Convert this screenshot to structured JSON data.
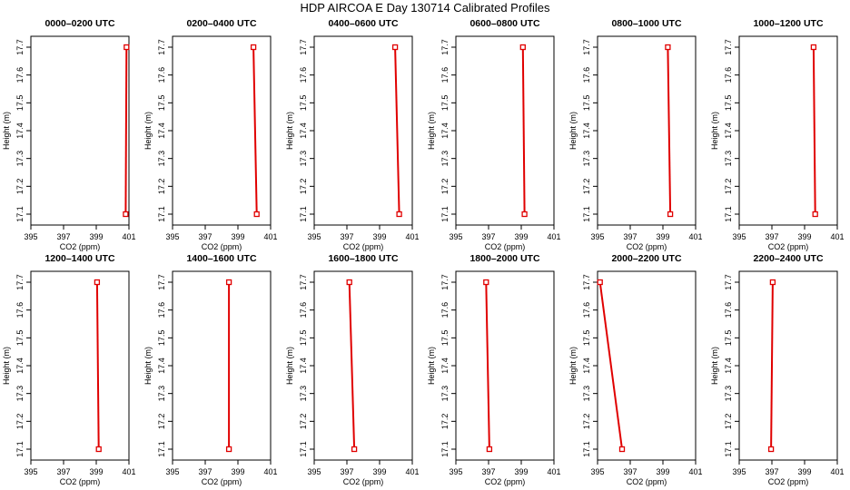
{
  "title": "HDP AIRCOA E  Day 130714  Calibrated Profiles",
  "colors": {
    "profile": "#e00000",
    "axis": "#000000"
  },
  "chart_data": {
    "type": "line",
    "xlabel": "CO2 (ppm)",
    "ylabel": "Height (m)",
    "xlim": [
      395,
      401
    ],
    "ylim": [
      17.1,
      17.7
    ],
    "xticks": [
      "395",
      "397",
      "399",
      "401"
    ],
    "yticks": [
      "17.1",
      "17.2",
      "17.3",
      "17.4",
      "17.5",
      "17.6",
      "17.7"
    ],
    "heights": [
      17.7,
      17.1
    ],
    "panels": [
      {
        "title": "0000–0200 UTC",
        "co2": [
          400.85,
          400.8
        ]
      },
      {
        "title": "0200–0400 UTC",
        "co2": [
          399.95,
          400.15
        ]
      },
      {
        "title": "0400–0600 UTC",
        "co2": [
          399.95,
          400.2
        ]
      },
      {
        "title": "0600–0800 UTC",
        "co2": [
          399.1,
          399.2
        ]
      },
      {
        "title": "0800–1000 UTC",
        "co2": [
          399.3,
          399.45
        ]
      },
      {
        "title": "1000–1200 UTC",
        "co2": [
          399.55,
          399.65
        ]
      },
      {
        "title": "1200–1400 UTC",
        "co2": [
          399.05,
          399.15
        ]
      },
      {
        "title": "1400–1600 UTC",
        "co2": [
          398.45,
          398.45
        ]
      },
      {
        "title": "1600–1800 UTC",
        "co2": [
          397.15,
          397.45
        ]
      },
      {
        "title": "1800–2000 UTC",
        "co2": [
          396.85,
          397.05
        ]
      },
      {
        "title": "2000–2200 UTC",
        "co2": [
          395.15,
          396.5
        ]
      },
      {
        "title": "2200–2400 UTC",
        "co2": [
          397.05,
          396.95
        ]
      }
    ]
  }
}
